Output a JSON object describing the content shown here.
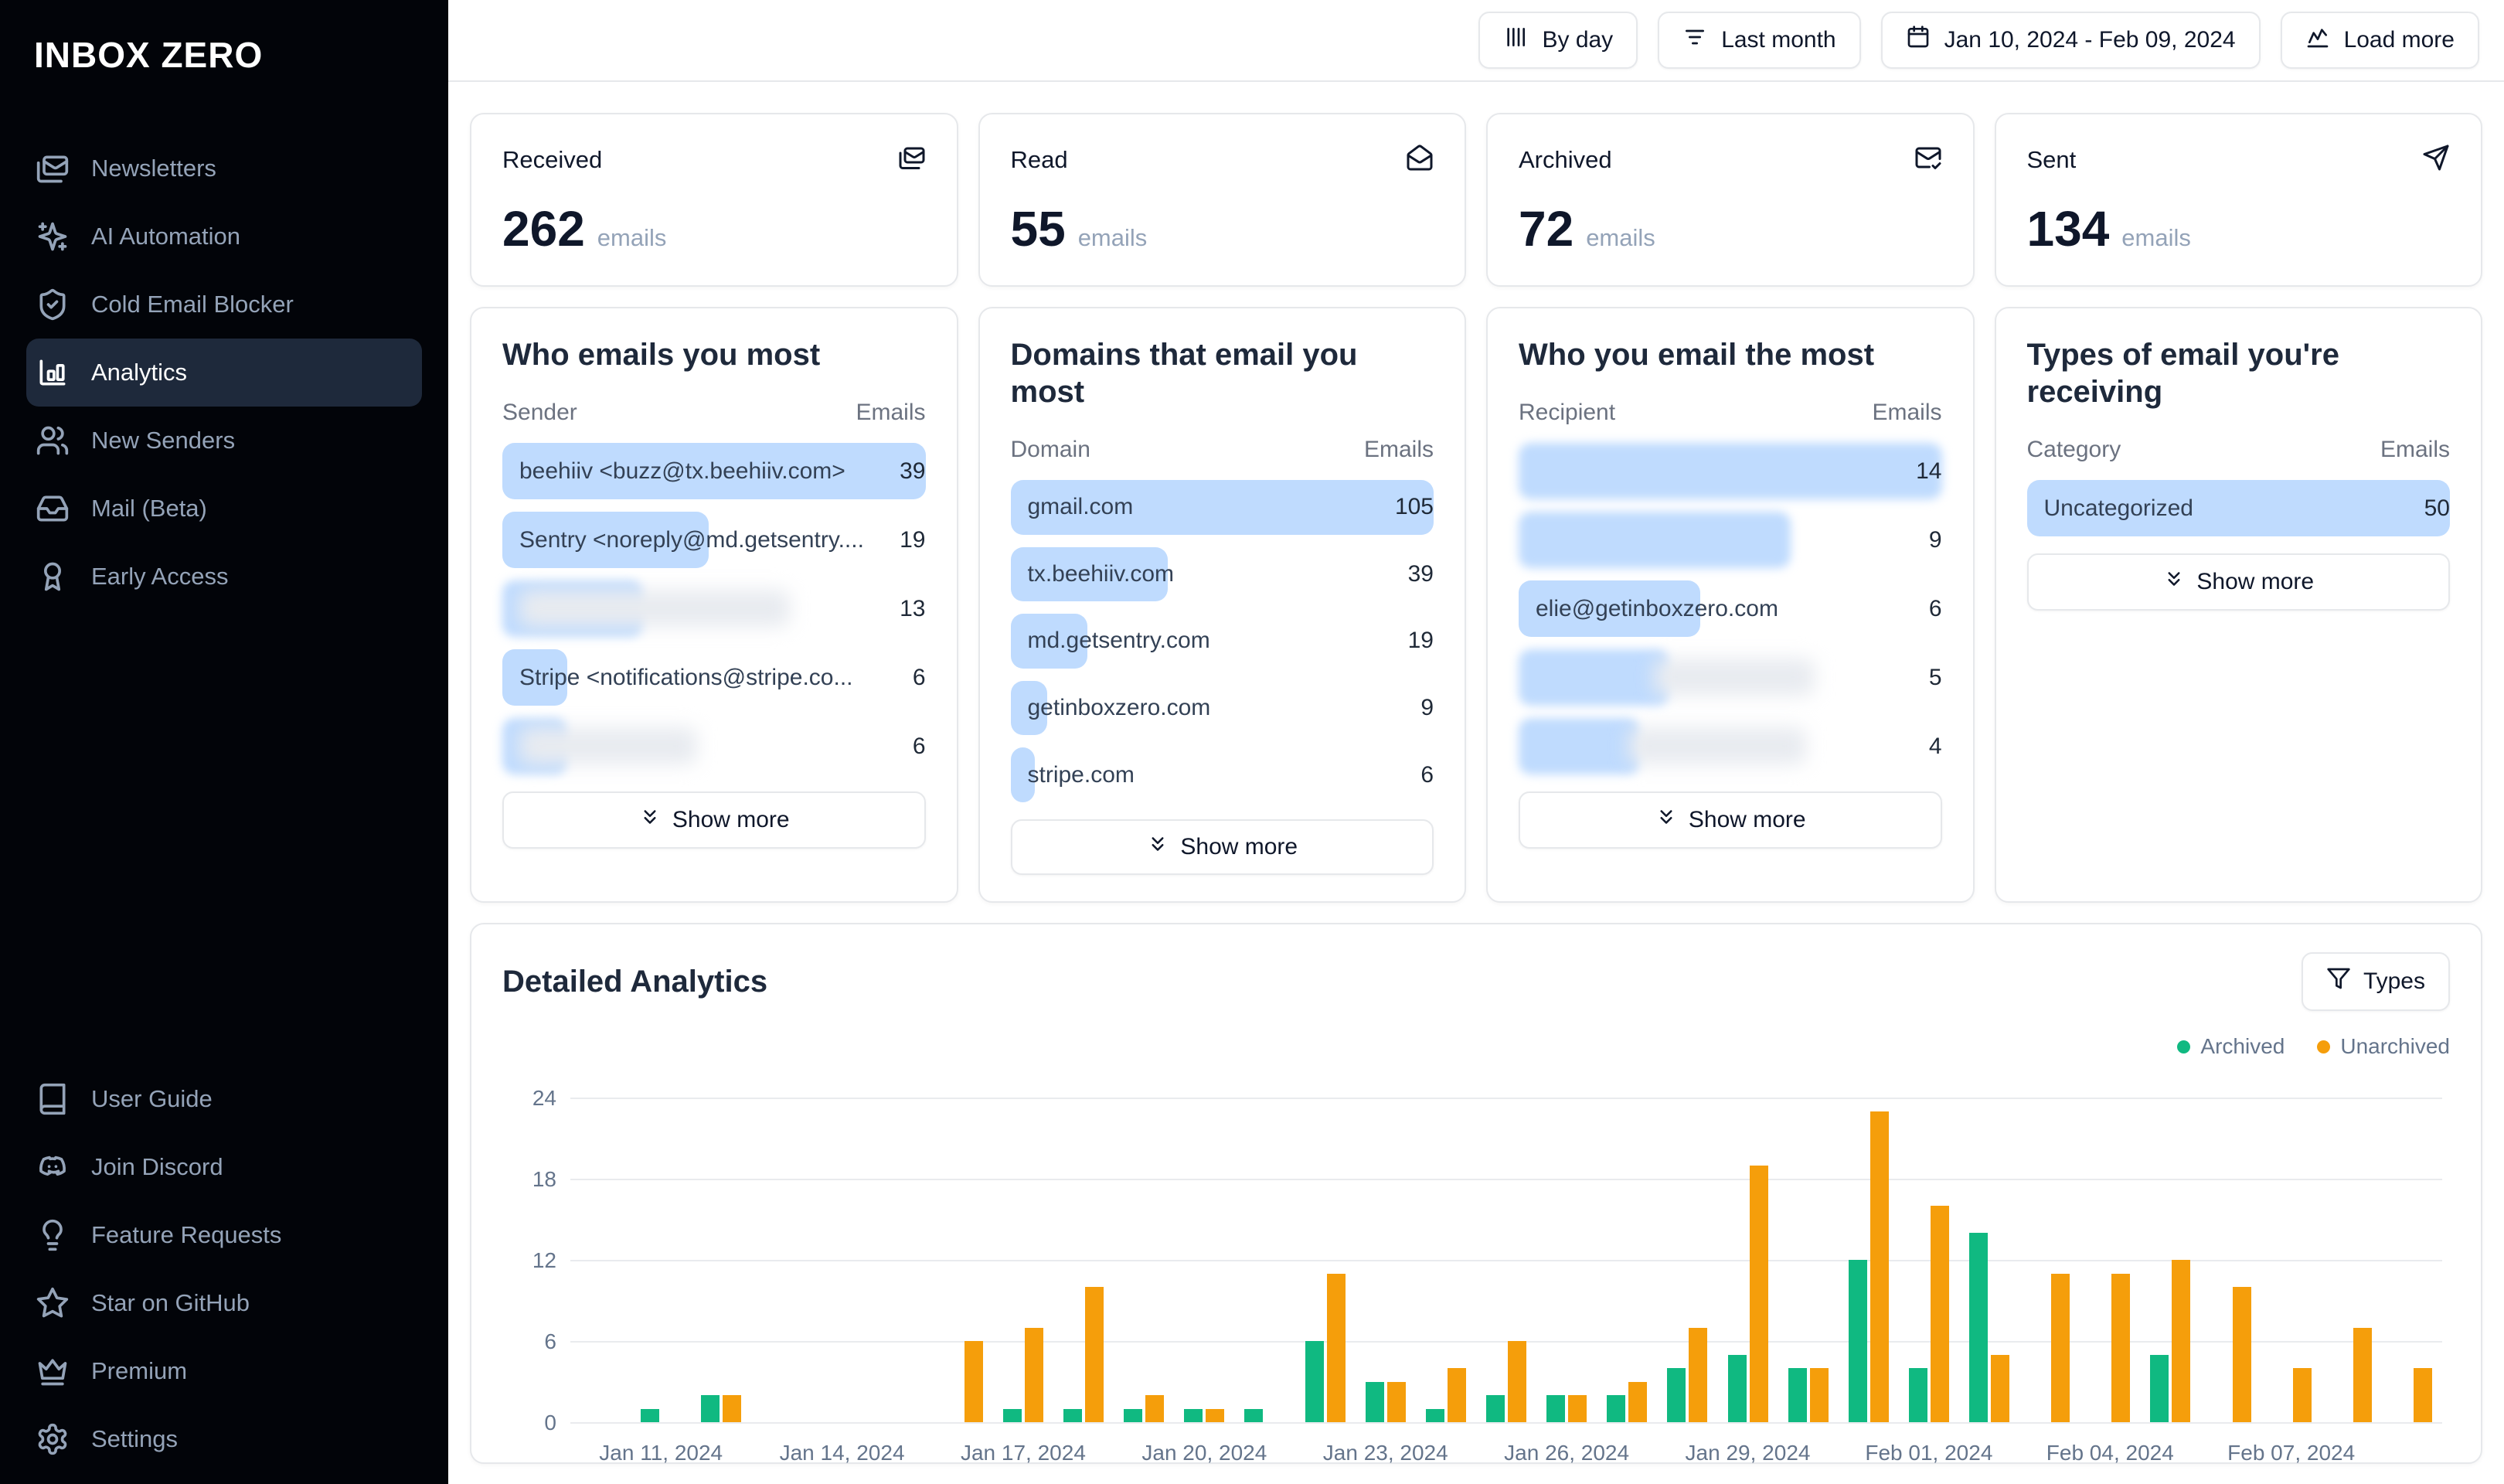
{
  "app": {
    "name": "INBOX ZERO"
  },
  "sidebar": {
    "main_items": [
      {
        "label": "Newsletters",
        "icon": "mails-icon"
      },
      {
        "label": "AI Automation",
        "icon": "sparkles-icon"
      },
      {
        "label": "Cold Email Blocker",
        "icon": "shield-check-icon"
      },
      {
        "label": "Analytics",
        "icon": "bar-chart-icon",
        "active": true
      },
      {
        "label": "New Senders",
        "icon": "users-icon"
      },
      {
        "label": "Mail (Beta)",
        "icon": "inbox-icon"
      },
      {
        "label": "Early Access",
        "icon": "ribbon-icon"
      }
    ],
    "footer_items": [
      {
        "label": "User Guide",
        "icon": "book-icon"
      },
      {
        "label": "Join Discord",
        "icon": "discord-icon"
      },
      {
        "label": "Feature Requests",
        "icon": "lightbulb-icon"
      },
      {
        "label": "Star on GitHub",
        "icon": "star-icon"
      },
      {
        "label": "Premium",
        "icon": "crown-icon"
      },
      {
        "label": "Settings",
        "icon": "gear-icon"
      }
    ]
  },
  "topbar": {
    "buttons": [
      {
        "label": "By day",
        "icon": "columns-icon"
      },
      {
        "label": "Last month",
        "icon": "filter-lines-icon"
      },
      {
        "label": "Jan 10, 2024 - Feb 09, 2024",
        "icon": "calendar-icon"
      },
      {
        "label": "Load more",
        "icon": "chart-icon"
      }
    ]
  },
  "stats": [
    {
      "label": "Received",
      "value": "262",
      "unit": "emails",
      "icon": "mails-icon"
    },
    {
      "label": "Read",
      "value": "55",
      "unit": "emails",
      "icon": "mail-open-icon"
    },
    {
      "label": "Archived",
      "value": "72",
      "unit": "emails",
      "icon": "mail-check-icon"
    },
    {
      "label": "Sent",
      "value": "134",
      "unit": "emails",
      "icon": "send-icon"
    }
  ],
  "tables": [
    {
      "title": "Who emails you most",
      "col_label": "Sender",
      "col_value": "Emails",
      "show_more": "Show more",
      "rows": [
        {
          "label": "beehiiv <buzz@tx.beehiiv.com>",
          "value": "39",
          "pct": 100,
          "redacted": false
        },
        {
          "label": "Sentry <noreply@md.getsentry....",
          "value": "19",
          "pct": 48.7,
          "redacted": false
        },
        {
          "label": "",
          "value": "13",
          "pct": 33.3,
          "redacted": true
        },
        {
          "label": "Stripe <notifications@stripe.co...",
          "value": "6",
          "pct": 15.4,
          "redacted": false
        },
        {
          "label": "",
          "value": "6",
          "pct": 15.4,
          "redacted": true
        }
      ]
    },
    {
      "title": "Domains that email you most",
      "col_label": "Domain",
      "col_value": "Emails",
      "show_more": "Show more",
      "rows": [
        {
          "label": "gmail.com",
          "value": "105",
          "pct": 100,
          "redacted": false
        },
        {
          "label": "tx.beehiiv.com",
          "value": "39",
          "pct": 37.1,
          "redacted": false
        },
        {
          "label": "md.getsentry.com",
          "value": "19",
          "pct": 18.1,
          "redacted": false
        },
        {
          "label": "getinboxzero.com",
          "value": "9",
          "pct": 8.6,
          "redacted": false
        },
        {
          "label": "stripe.com",
          "value": "6",
          "pct": 5.7,
          "redacted": false
        }
      ]
    },
    {
      "title": "Who you email the most",
      "col_label": "Recipient",
      "col_value": "Emails",
      "show_more": "Show more",
      "rows": [
        {
          "label": "",
          "value": "14",
          "pct": 100,
          "redacted": true
        },
        {
          "label": "",
          "value": "9",
          "pct": 64.3,
          "redacted": true
        },
        {
          "label": "elie@getinboxzero.com",
          "value": "6",
          "pct": 42.9,
          "redacted": false
        },
        {
          "label": "",
          "value": "5",
          "pct": 35.7,
          "redacted": true
        },
        {
          "label": "",
          "value": "4",
          "pct": 28.6,
          "redacted": true
        }
      ]
    },
    {
      "title": "Types of email you're receiving",
      "col_label": "Category",
      "col_value": "Emails",
      "show_more": "Show more",
      "rows": [
        {
          "label": "Uncategorized",
          "value": "50",
          "pct": 100,
          "redacted": false
        }
      ]
    }
  ],
  "detailed": {
    "title": "Detailed Analytics",
    "filter_button": "Types",
    "legend": [
      {
        "label": "Archived",
        "color": "#10b981"
      },
      {
        "label": "Unarchived",
        "color": "#f59e0b"
      }
    ]
  },
  "chart_data": {
    "type": "bar",
    "title": "Detailed Analytics",
    "x": [
      "Jan 10, 2024",
      "Jan 11, 2024",
      "Jan 12, 2024",
      "Jan 13, 2024",
      "Jan 14, 2024",
      "Jan 15, 2024",
      "Jan 16, 2024",
      "Jan 17, 2024",
      "Jan 18, 2024",
      "Jan 19, 2024",
      "Jan 20, 2024",
      "Jan 21, 2024",
      "Jan 22, 2024",
      "Jan 23, 2024",
      "Jan 24, 2024",
      "Jan 25, 2024",
      "Jan 26, 2024",
      "Jan 27, 2024",
      "Jan 28, 2024",
      "Jan 29, 2024",
      "Jan 30, 2024",
      "Jan 31, 2024",
      "Feb 01, 2024",
      "Feb 02, 2024",
      "Feb 03, 2024",
      "Feb 04, 2024",
      "Feb 05, 2024",
      "Feb 06, 2024",
      "Feb 07, 2024",
      "Feb 08, 2024",
      "Feb 09, 2024"
    ],
    "series": [
      {
        "name": "Archived",
        "color": "#10b981",
        "values": [
          0,
          1,
          2,
          0,
          0,
          0,
          0,
          1,
          1,
          1,
          1,
          1,
          6,
          3,
          1,
          2,
          2,
          2,
          4,
          5,
          4,
          12,
          4,
          14,
          0,
          0,
          5,
          0,
          0,
          0,
          0
        ]
      },
      {
        "name": "Unarchived",
        "color": "#f59e0b",
        "values": [
          0,
          0,
          2,
          0,
          0,
          0,
          6,
          7,
          10,
          2,
          1,
          0,
          11,
          3,
          4,
          6,
          2,
          3,
          7,
          19,
          4,
          23,
          16,
          5,
          11,
          11,
          12,
          10,
          4,
          7,
          4
        ]
      }
    ],
    "xtick_labels": [
      "Jan 11, 2024",
      "Jan 14, 2024",
      "Jan 17, 2024",
      "Jan 20, 2024",
      "Jan 23, 2024",
      "Jan 26, 2024",
      "Jan 29, 2024",
      "Feb 01, 2024",
      "Feb 04, 2024",
      "Feb 07, 2024"
    ],
    "xtick_start_index": 1,
    "xtick_every": 3,
    "ylabel": "",
    "xlabel": "",
    "ylim": [
      0,
      24
    ],
    "yticks": [
      0,
      6,
      12,
      18,
      24
    ],
    "grid": true,
    "legend_position": "top-right"
  }
}
